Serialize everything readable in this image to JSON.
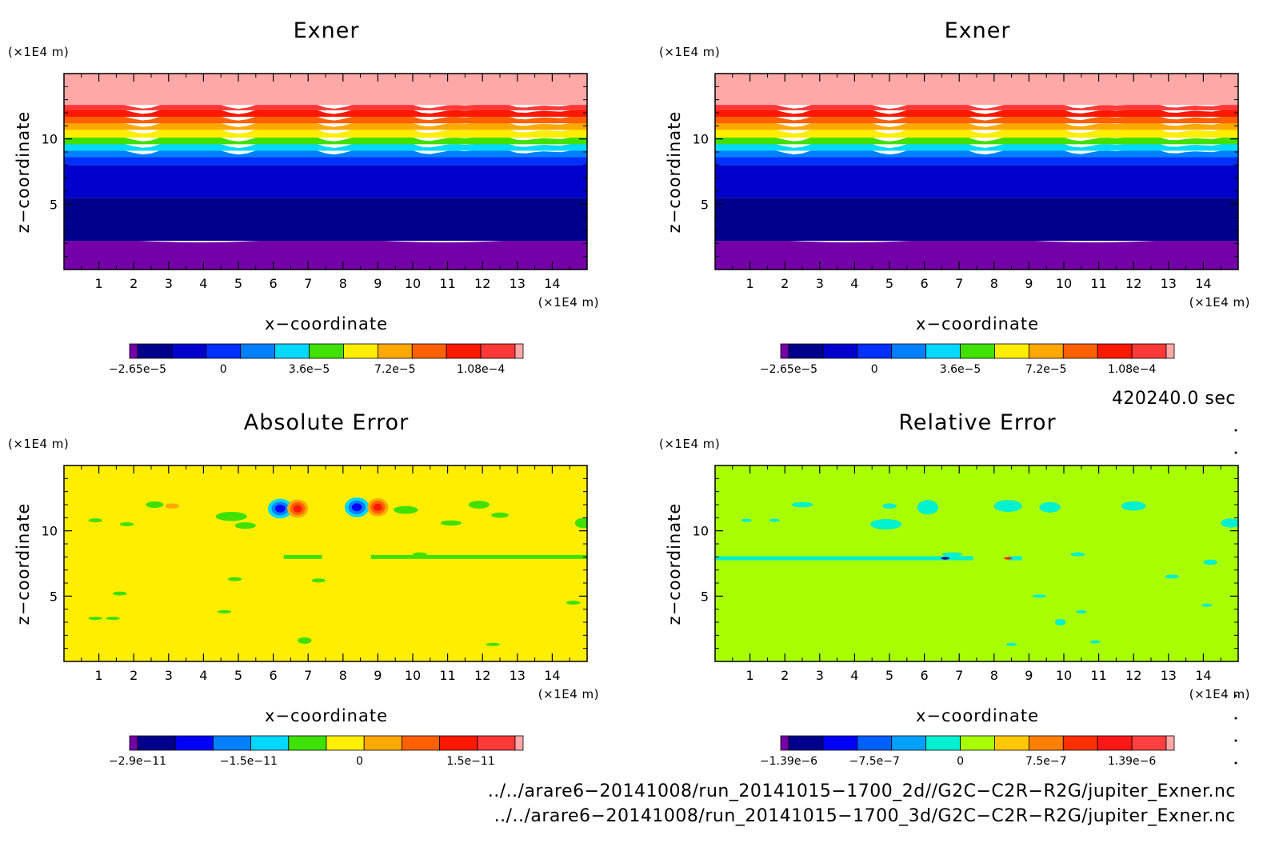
{
  "chart_data": [
    {
      "type": "heatmap",
      "title": "Exner",
      "xlabel": "x−coordinate",
      "ylabel": "z−coordinate",
      "x_unit": "(×1E4 m)",
      "y_unit": "(×1E4 m)",
      "x_ticks": [
        "1",
        "2",
        "3",
        "4",
        "5",
        "6",
        "7",
        "8",
        "9",
        "10",
        "11",
        "12",
        "13",
        "14"
      ],
      "y_ticks": [
        "5",
        "10"
      ],
      "xlim": [
        0,
        15
      ],
      "ylim": [
        0,
        15
      ],
      "colorbar_labels": [
        "−2.65e−5",
        "0",
        "3.6e−5",
        "7.2e−5",
        "1.08e−4"
      ],
      "colorbar_colors": [
        "#7400a8",
        "#00008c",
        "#0000cc",
        "#0030ff",
        "#0080ff",
        "#00d8ff",
        "#40e000",
        "#ffee00",
        "#ffa800",
        "#ff6000",
        "#ff1800",
        "#ff3838",
        "#ffa8a8"
      ],
      "bands": [
        {
          "zmin": 0,
          "zmax": 2.2,
          "color": "#7400a8"
        },
        {
          "zmin": 2.2,
          "zmax": 5.5,
          "color": "#00008c"
        },
        {
          "zmin": 5.5,
          "zmax": 8.0,
          "color": "#0000cc"
        },
        {
          "zmin": 8.0,
          "zmax": 8.6,
          "color": "#0030ff"
        },
        {
          "zmin": 8.6,
          "zmax": 9.1,
          "color": "#0080ff"
        },
        {
          "zmin": 9.1,
          "zmax": 9.6,
          "color": "#00d8ff"
        },
        {
          "zmin": 9.6,
          "zmax": 10.1,
          "color": "#40e000"
        },
        {
          "zmin": 10.1,
          "zmax": 10.7,
          "color": "#ffee00"
        },
        {
          "zmin": 10.7,
          "zmax": 11.2,
          "color": "#ffa800"
        },
        {
          "zmin": 11.2,
          "zmax": 11.7,
          "color": "#ff6000"
        },
        {
          "zmin": 11.7,
          "zmax": 12.2,
          "color": "#ff1800"
        },
        {
          "zmin": 12.2,
          "zmax": 12.6,
          "color": "#ff3838"
        },
        {
          "zmin": 12.6,
          "zmax": 15,
          "color": "#ffa8a8"
        }
      ]
    },
    {
      "type": "heatmap",
      "title": "Exner",
      "xlabel": "x−coordinate",
      "ylabel": "z−coordinate",
      "x_unit": "(×1E4 m)",
      "y_unit": "(×1E4 m)",
      "x_ticks": [
        "1",
        "2",
        "3",
        "4",
        "5",
        "6",
        "7",
        "8",
        "9",
        "10",
        "11",
        "12",
        "13",
        "14"
      ],
      "y_ticks": [
        "5",
        "10"
      ],
      "xlim": [
        0,
        15
      ],
      "ylim": [
        0,
        15
      ],
      "colorbar_labels": [
        "−2.65e−5",
        "0",
        "3.6e−5",
        "7.2e−5",
        "1.08e−4"
      ],
      "colorbar_colors": [
        "#7400a8",
        "#00008c",
        "#0000cc",
        "#0030ff",
        "#0080ff",
        "#00d8ff",
        "#40e000",
        "#ffee00",
        "#ffa800",
        "#ff6000",
        "#ff1800",
        "#ff3838",
        "#ffa8a8"
      ],
      "bands": [
        {
          "zmin": 0,
          "zmax": 2.2,
          "color": "#7400a8"
        },
        {
          "zmin": 2.2,
          "zmax": 5.5,
          "color": "#00008c"
        },
        {
          "zmin": 5.5,
          "zmax": 8.0,
          "color": "#0000cc"
        },
        {
          "zmin": 8.0,
          "zmax": 8.6,
          "color": "#0030ff"
        },
        {
          "zmin": 8.6,
          "zmax": 9.1,
          "color": "#0080ff"
        },
        {
          "zmin": 9.1,
          "zmax": 9.6,
          "color": "#00d8ff"
        },
        {
          "zmin": 9.6,
          "zmax": 10.1,
          "color": "#40e000"
        },
        {
          "zmin": 10.1,
          "zmax": 10.7,
          "color": "#ffee00"
        },
        {
          "zmin": 10.7,
          "zmax": 11.2,
          "color": "#ffa800"
        },
        {
          "zmin": 11.2,
          "zmax": 11.7,
          "color": "#ff6000"
        },
        {
          "zmin": 11.7,
          "zmax": 12.2,
          "color": "#ff1800"
        },
        {
          "zmin": 12.2,
          "zmax": 12.6,
          "color": "#ff3838"
        },
        {
          "zmin": 12.6,
          "zmax": 15,
          "color": "#ffa8a8"
        }
      ]
    },
    {
      "type": "heatmap",
      "title": "Absolute Error",
      "xlabel": "x−coordinate",
      "ylabel": "z−coordinate",
      "x_unit": "(×1E4 m)",
      "y_unit": "(×1E4 m)",
      "x_ticks": [
        "1",
        "2",
        "3",
        "4",
        "5",
        "6",
        "7",
        "8",
        "9",
        "10",
        "11",
        "12",
        "13",
        "14"
      ],
      "y_ticks": [
        "5",
        "10"
      ],
      "xlim": [
        0,
        15
      ],
      "ylim": [
        0,
        15
      ],
      "colorbar_labels": [
        "−2.9e−11",
        "−1.5e−11",
        "0",
        "1.5e−11"
      ],
      "colorbar_colors": [
        "#7400a8",
        "#00008c",
        "#0000ff",
        "#0080ff",
        "#00d8ff",
        "#40e000",
        "#ffee00",
        "#ffa800",
        "#ff6000",
        "#ff1800",
        "#ff3838",
        "#ffa8a8"
      ],
      "background": "#ffee00",
      "features": [
        {
          "x": 6.2,
          "z": 11.7,
          "rx": 0.35,
          "rz": 0.75,
          "rings": [
            "#00d8ff",
            "#0080ff",
            "#0000ff"
          ]
        },
        {
          "x": 8.4,
          "z": 11.8,
          "rx": 0.35,
          "rz": 0.75,
          "rings": [
            "#00d8ff",
            "#0080ff",
            "#0000ff"
          ]
        },
        {
          "x": 6.7,
          "z": 11.7,
          "rx": 0.3,
          "rz": 0.7,
          "rings": [
            "#ffa800",
            "#ff6000",
            "#ff1800"
          ]
        },
        {
          "x": 9.0,
          "z": 11.8,
          "rx": 0.3,
          "rz": 0.7,
          "rings": [
            "#ffa800",
            "#ff6000",
            "#ff1800"
          ]
        },
        {
          "x": 2.6,
          "z": 12.0,
          "rx": 0.25,
          "rz": 0.25,
          "rings": [
            "#40e000"
          ]
        },
        {
          "x": 3.1,
          "z": 11.9,
          "rx": 0.2,
          "rz": 0.2,
          "rings": [
            "#ffa800"
          ]
        },
        {
          "x": 4.8,
          "z": 11.1,
          "rx": 0.45,
          "rz": 0.35,
          "rings": [
            "#40e000"
          ]
        },
        {
          "x": 5.2,
          "z": 10.4,
          "rx": 0.3,
          "rz": 0.25,
          "rings": [
            "#40e000"
          ]
        },
        {
          "x": 9.8,
          "z": 11.6,
          "rx": 0.35,
          "rz": 0.3,
          "rings": [
            "#40e000"
          ]
        },
        {
          "x": 11.9,
          "z": 12.0,
          "rx": 0.3,
          "rz": 0.3,
          "rings": [
            "#40e000"
          ]
        },
        {
          "x": 12.5,
          "z": 11.2,
          "rx": 0.25,
          "rz": 0.2,
          "rings": [
            "#40e000"
          ]
        },
        {
          "x": 14.9,
          "z": 10.6,
          "rx": 0.25,
          "rz": 0.4,
          "rings": [
            "#40e000"
          ]
        },
        {
          "x": 0.9,
          "z": 10.8,
          "rx": 0.2,
          "rz": 0.15,
          "rings": [
            "#40e000"
          ]
        },
        {
          "x": 1.8,
          "z": 10.5,
          "rx": 0.2,
          "rz": 0.15,
          "rings": [
            "#40e000"
          ]
        },
        {
          "x": 11.1,
          "z": 10.6,
          "rx": 0.3,
          "rz": 0.2,
          "rings": [
            "#40e000"
          ]
        },
        {
          "x": 10.2,
          "z": 8.2,
          "rx": 0.2,
          "rz": 0.15,
          "rings": [
            "#40e000"
          ]
        },
        {
          "x": 1.6,
          "z": 5.2,
          "rx": 0.2,
          "rz": 0.15,
          "rings": [
            "#40e000"
          ]
        },
        {
          "x": 4.9,
          "z": 6.3,
          "rx": 0.2,
          "rz": 0.15,
          "rings": [
            "#40e000"
          ]
        },
        {
          "x": 7.3,
          "z": 6.2,
          "rx": 0.2,
          "rz": 0.15,
          "rings": [
            "#40e000"
          ]
        },
        {
          "x": 0.9,
          "z": 3.3,
          "rx": 0.2,
          "rz": 0.12,
          "rings": [
            "#40e000"
          ]
        },
        {
          "x": 1.4,
          "z": 3.3,
          "rx": 0.2,
          "rz": 0.12,
          "rings": [
            "#40e000"
          ]
        },
        {
          "x": 4.6,
          "z": 3.8,
          "rx": 0.2,
          "rz": 0.12,
          "rings": [
            "#40e000"
          ]
        },
        {
          "x": 6.9,
          "z": 1.6,
          "rx": 0.2,
          "rz": 0.25,
          "rings": [
            "#40e000"
          ]
        },
        {
          "x": 12.3,
          "z": 1.3,
          "rx": 0.2,
          "rz": 0.12,
          "rings": [
            "#40e000"
          ]
        },
        {
          "x": 14.6,
          "z": 4.5,
          "rx": 0.2,
          "rz": 0.15,
          "rings": [
            "#40e000"
          ]
        }
      ],
      "lines": [
        {
          "x1": 6.3,
          "x2": 7.4,
          "z": 8.0,
          "color": "#40e000"
        },
        {
          "x1": 8.8,
          "x2": 15.0,
          "z": 8.0,
          "color": "#40e000"
        }
      ]
    },
    {
      "type": "heatmap",
      "title": "Relative Error",
      "xlabel": "x−coordinate",
      "ylabel": "z−coordinate",
      "x_unit": "(×1E4 m)",
      "y_unit": "(×1E4 m)",
      "x_ticks": [
        "1",
        "2",
        "3",
        "4",
        "5",
        "6",
        "7",
        "8",
        "9",
        "10",
        "11",
        "12",
        "13",
        "14"
      ],
      "y_ticks": [
        "5",
        "10"
      ],
      "xlim": [
        0,
        15
      ],
      "ylim": [
        0,
        15
      ],
      "colorbar_labels": [
        "−1.39e−6",
        "−7.5e−7",
        "0",
        "7.5e−7",
        "1.39e−6"
      ],
      "colorbar_colors": [
        "#7400a8",
        "#00008c",
        "#0000ff",
        "#0060ff",
        "#00a0ff",
        "#00f0d0",
        "#a8ff00",
        "#ffc800",
        "#ff8000",
        "#ff3000",
        "#ff1818",
        "#ff4040",
        "#ffa8a8"
      ],
      "background": "#a8ff00",
      "features": [
        {
          "x": 6.1,
          "z": 11.8,
          "rx": 0.3,
          "rz": 0.55,
          "rings": [
            "#00f0d0"
          ]
        },
        {
          "x": 8.4,
          "z": 11.9,
          "rx": 0.4,
          "rz": 0.45,
          "rings": [
            "#00f0d0"
          ]
        },
        {
          "x": 9.6,
          "z": 11.8,
          "rx": 0.3,
          "rz": 0.4,
          "rings": [
            "#00f0d0"
          ]
        },
        {
          "x": 12.0,
          "z": 11.9,
          "rx": 0.35,
          "rz": 0.35,
          "rings": [
            "#00f0d0"
          ]
        },
        {
          "x": 2.5,
          "z": 12.0,
          "rx": 0.3,
          "rz": 0.2,
          "rings": [
            "#00f0d0"
          ]
        },
        {
          "x": 5.0,
          "z": 11.9,
          "rx": 0.2,
          "rz": 0.2,
          "rings": [
            "#00f0d0"
          ]
        },
        {
          "x": 4.9,
          "z": 10.5,
          "rx": 0.45,
          "rz": 0.4,
          "rings": [
            "#00f0d0"
          ]
        },
        {
          "x": 14.8,
          "z": 10.6,
          "rx": 0.3,
          "rz": 0.35,
          "rings": [
            "#00f0d0"
          ]
        },
        {
          "x": 0.9,
          "z": 10.8,
          "rx": 0.15,
          "rz": 0.12,
          "rings": [
            "#00f0d0"
          ]
        },
        {
          "x": 1.7,
          "z": 10.8,
          "rx": 0.15,
          "rz": 0.12,
          "rings": [
            "#00f0d0"
          ]
        },
        {
          "x": 6.8,
          "z": 8.2,
          "rx": 0.3,
          "rz": 0.15,
          "rings": [
            "#00f0d0"
          ]
        },
        {
          "x": 10.4,
          "z": 8.2,
          "rx": 0.2,
          "rz": 0.15,
          "rings": [
            "#00f0d0"
          ]
        },
        {
          "x": 14.2,
          "z": 7.6,
          "rx": 0.2,
          "rz": 0.2,
          "rings": [
            "#00f0d0"
          ]
        },
        {
          "x": 13.1,
          "z": 6.5,
          "rx": 0.2,
          "rz": 0.15,
          "rings": [
            "#00f0d0"
          ]
        },
        {
          "x": 9.3,
          "z": 5.0,
          "rx": 0.2,
          "rz": 0.12,
          "rings": [
            "#00f0d0"
          ]
        },
        {
          "x": 9.9,
          "z": 3.0,
          "rx": 0.15,
          "rz": 0.25,
          "rings": [
            "#00f0d0"
          ]
        },
        {
          "x": 10.5,
          "z": 3.8,
          "rx": 0.15,
          "rz": 0.12,
          "rings": [
            "#00f0d0"
          ]
        },
        {
          "x": 8.5,
          "z": 1.3,
          "rx": 0.15,
          "rz": 0.12,
          "rings": [
            "#00f0d0"
          ]
        },
        {
          "x": 10.9,
          "z": 1.5,
          "rx": 0.15,
          "rz": 0.12,
          "rings": [
            "#00f0d0"
          ]
        },
        {
          "x": 14.1,
          "z": 4.3,
          "rx": 0.15,
          "rz": 0.12,
          "rings": [
            "#00f0d0"
          ]
        },
        {
          "x": 6.6,
          "z": 7.9,
          "rx": 0.12,
          "rz": 0.1,
          "rings": [
            "#00008c"
          ]
        },
        {
          "x": 8.4,
          "z": 7.9,
          "rx": 0.12,
          "rz": 0.1,
          "rings": [
            "#ff3000"
          ]
        }
      ],
      "lines": [
        {
          "x1": 0.0,
          "x2": 7.4,
          "z": 7.9,
          "color": "#00f0d0"
        },
        {
          "x1": 8.4,
          "x2": 8.8,
          "z": 7.9,
          "color": "#00f0d0"
        }
      ]
    }
  ],
  "time_label": "420240.0 sec",
  "file_paths": [
    "../../arare6−20141008/run_20141015−1700_2d//G2C−C2R−R2G/jupiter_Exner.nc",
    "../../arare6−20141008/run_20141015−1700_3d/G2C−C2R−R2G/jupiter_Exner.nc"
  ]
}
